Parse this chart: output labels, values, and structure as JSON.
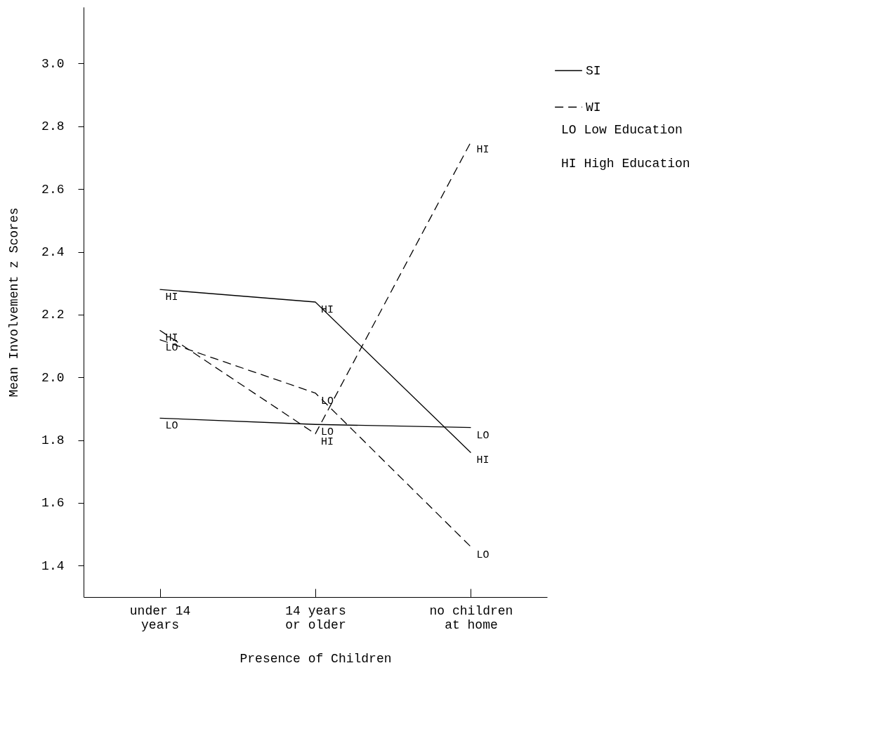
{
  "chart_data": {
    "type": "line",
    "xlabel": "Presence of Children",
    "ylabel": "Mean Involvement z Scores",
    "categories": [
      "under 14\nyears",
      "14 years\nor older",
      "no children\nat home"
    ],
    "series": [
      {
        "name": "SI",
        "color": "#000000",
        "line_style": "solid",
        "values": [
          2.28,
          2.24,
          1.76
        ]
      },
      {
        "color": "#000000",
        "line_style": "solid",
        "values": [
          1.87,
          1.85,
          1.84
        ]
      },
      {
        "name": "WI",
        "color": "#000000",
        "line_style": "dashed",
        "values": [
          2.15,
          1.82,
          2.75
        ]
      },
      {
        "color": "#000000",
        "line_style": "dashed",
        "values": [
          2.12,
          1.95,
          1.46
        ]
      }
    ],
    "ylim": [
      1.3,
      3.18
    ],
    "yticks": [
      1.4,
      1.6,
      1.8,
      {
        "value": 2,
        "label": "2.0"
      },
      2.2,
      2.4,
      2.6,
      2.8,
      {
        "value": 3,
        "label": "3.0"
      }
    ],
    "grid": false,
    "legend": "top right",
    "annotations": [
      {
        "text": "HI",
        "x": "under 14\nyears",
        "y": 2.28
      },
      {
        "text": "HI",
        "x": "14 years\nor older",
        "y": 2.24
      },
      {
        "text": "HI",
        "x": "no children\nat home",
        "y": 1.76
      },
      {
        "text": "LO",
        "x": "under 14\nyears",
        "y": 1.87
      },
      {
        "text": "LO",
        "x": "14 years\nor older",
        "y": 1.85
      },
      {
        "text": "LO",
        "x": "no children\nat home",
        "y": 1.84
      },
      {
        "text": "HI",
        "x": "under 14\nyears",
        "y": 2.15
      },
      {
        "text": "HI",
        "x": "14 years\nor older",
        "y": 1.82
      },
      {
        "text": "HI",
        "x": "no children\nat home",
        "y": 2.75
      },
      {
        "text": "LO",
        "x": "under 14\nyears",
        "y": 2.12
      },
      {
        "text": "LO",
        "x": "14 years\nor older",
        "y": 1.95
      },
      {
        "text": "LO",
        "x": "no children\nat home",
        "y": 1.46
      },
      "LO  Low Education",
      "HI  High Education"
    ]
  }
}
